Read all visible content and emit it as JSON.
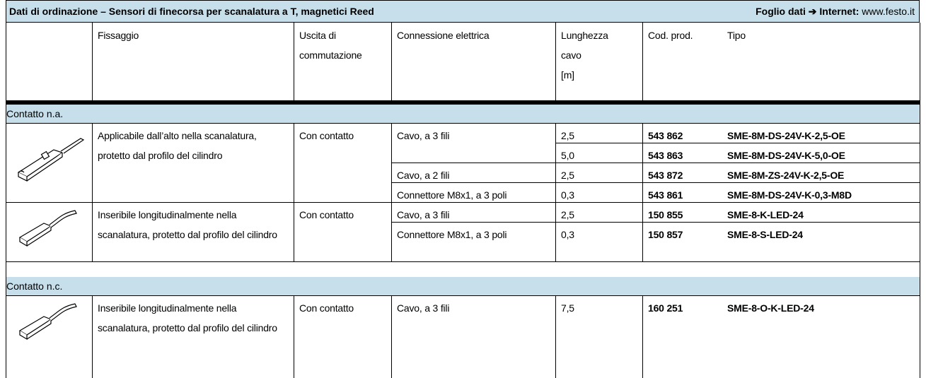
{
  "header": {
    "title": "Dati di ordinazione – Sensori di finecorsa per scanalatura a T, magnetici Reed",
    "datasheet_label": "Foglio dati",
    "arrow": "➔",
    "internet_label": "Internet:",
    "url": "www.festo.it"
  },
  "table": {
    "columns": [
      [
        "Fissaggio"
      ],
      [
        "Uscita di",
        "commutazione"
      ],
      [
        "Connessione elettrica"
      ],
      [
        "Lunghezza",
        "cavo",
        "[m]"
      ],
      [
        "Cod. prod."
      ],
      [
        "Tipo"
      ]
    ],
    "groups": [
      {
        "label": "Contatto n.a.",
        "products": [
          {
            "mounting": "Applicabile dall’alto nella scanalatura, protetto dal profilo del cilindro",
            "output": "Con contatto",
            "connections": [
              {
                "type": "Cavo, a 3 fili",
                "variants": [
                  {
                    "length": "2,5",
                    "code": "543 862",
                    "model": "SME-8M-DS-24V-K-2,5-OE"
                  },
                  {
                    "length": "5,0",
                    "code": "543 863",
                    "model": "SME-8M-DS-24V-K-5,0-OE"
                  }
                ]
              },
              {
                "type": "Cavo, a 2 fili",
                "variants": [
                  {
                    "length": "2,5",
                    "code": "543 872",
                    "model": "SME-8M-ZS-24V-K-2,5-OE"
                  }
                ]
              },
              {
                "type": "Connettore M8x1, a 3 poli",
                "variants": [
                  {
                    "length": "0,3",
                    "code": "543 861",
                    "model": "SME-8M-DS-24V-K-0,3-M8D"
                  }
                ]
              }
            ]
          },
          {
            "mounting": "Inseribile longitudinalmente nella scanalatura, protetto dal profilo del cilindro",
            "output": "Con contatto",
            "connections": [
              {
                "type": "Cavo, a 3 fili",
                "variants": [
                  {
                    "length": "2,5",
                    "code": "150 855",
                    "model": "SME-8-K-LED-24"
                  }
                ]
              },
              {
                "type": "Connettore M8x1, a 3 poli",
                "variants": [
                  {
                    "length": "0,3",
                    "code": "150 857",
                    "model": "SME-8-S-LED-24"
                  }
                ]
              }
            ]
          }
        ]
      },
      {
        "label": "Contatto n.c.",
        "products": [
          {
            "mounting": "Inseribile longitudinalmente nella scanalatura, protetto dal profilo del cilindro",
            "output": "Con contatto",
            "connections": [
              {
                "type": "Cavo, a 3 fili",
                "variants": [
                  {
                    "length": "7,5",
                    "code": "160 251",
                    "model": "SME-8-O-K-LED-24"
                  }
                ]
              }
            ]
          }
        ]
      }
    ]
  }
}
